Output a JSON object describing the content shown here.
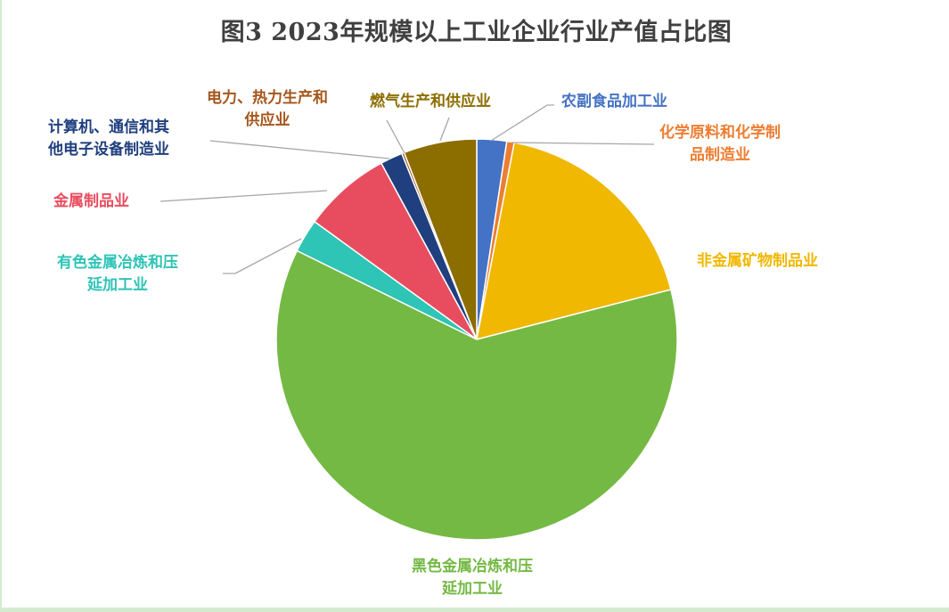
{
  "chart_data": {
    "type": "pie",
    "title": "图3  2023年规模以上工业企业行业产值占比图",
    "unit": "%",
    "start_angle_deg": 0,
    "direction": "clockwise",
    "categories": [
      "农副食品加工业",
      "化学原料和化学制品制造业",
      "非金属矿物制品业",
      "黑色金属冶炼和压延加工业",
      "有色金属冶炼和压延加工业",
      "金属制品业",
      "计算机、通信和其他电子设备制造业",
      "电力、热力生产和供应业",
      "燃气生产和供应业"
    ],
    "values": [
      2.4,
      0.6,
      18.0,
      61.3,
      2.7,
      7.1,
      1.8,
      0.2,
      5.9
    ],
    "colors": [
      "#4472c4",
      "#ed7d31",
      "#f0b800",
      "#74b944",
      "#2ec4b6",
      "#e84d5f",
      "#203f7f",
      "#a5561c",
      "#8c6d00"
    ],
    "legend": "none (data labels with leader lines)"
  },
  "title": "图3  2023年规模以上工业企业行业产值占比图",
  "labels": {
    "food": {
      "line1": "农副食品加工业",
      "color": "#4472c4"
    },
    "chem": {
      "line1": "化学原料和化学制",
      "line2": "品制造业",
      "color": "#ed7d31"
    },
    "nonmetal": {
      "line1": "非金属矿物制品业",
      "color": "#f0b800"
    },
    "ferrous": {
      "line1": "黑色金属冶炼和压",
      "line2": "延加工业",
      "color": "#74b944"
    },
    "nonferrous": {
      "line1": "有色金属冶炼和压",
      "line2": "延加工业",
      "color": "#2ec4b6"
    },
    "metalprod": {
      "line1": "金属制品业",
      "color": "#e84d5f"
    },
    "computer": {
      "line1": "计算机、通信和其",
      "line2": "他电子设备制造业",
      "color": "#203f7f"
    },
    "power": {
      "line1": "电力、热力生产和",
      "line2": "供应业",
      "color": "#a5561c"
    },
    "gas": {
      "line1": "燃气生产和供应业",
      "color": "#8c6d00"
    }
  }
}
